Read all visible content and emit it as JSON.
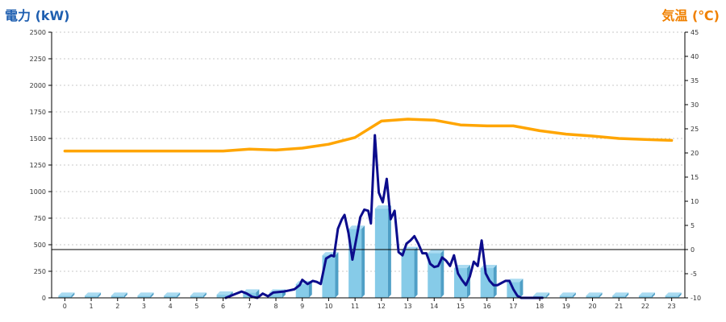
{
  "chart_data": {
    "type": "bar+line",
    "left_axis_title": "電力 (kW)",
    "right_axis_title": "気温 (℃)",
    "colors": {
      "bar_face": "#86cbe8",
      "bar_side": "#4f9fc6",
      "bar_top": "#a9dbf1",
      "power_line": "#0c0c8c",
      "temp_line": "#ffa500",
      "left_title": "#1f5fb0",
      "right_title": "#f08000"
    },
    "left_axis": {
      "ylim": [
        0,
        2500
      ],
      "ticks": [
        0,
        250,
        500,
        750,
        1000,
        1250,
        1500,
        1750,
        2000,
        2250,
        2500
      ]
    },
    "right_axis": {
      "ylim": [
        -10,
        45
      ],
      "ticks": [
        -10,
        -5,
        0,
        5,
        10,
        15,
        20,
        25,
        30,
        35,
        40,
        45
      ]
    },
    "categories": [
      "0",
      "1",
      "2",
      "3",
      "4",
      "5",
      "6",
      "7",
      "8",
      "9",
      "10",
      "11",
      "12",
      "13",
      "14",
      "15",
      "16",
      "17",
      "18",
      "19",
      "20",
      "21",
      "22",
      "23"
    ],
    "series": [
      {
        "kind": "bar",
        "values": [
          20,
          20,
          20,
          20,
          20,
          20,
          30,
          50,
          50,
          130,
          400,
          650,
          840,
          450,
          420,
          280,
          280,
          150,
          20,
          20,
          20,
          20,
          20,
          20
        ]
      },
      {
        "kind": "line",
        "axis": "right",
        "x": [
          0,
          1,
          2,
          3,
          4,
          5,
          6,
          7,
          8,
          9,
          10,
          11,
          12,
          13,
          14,
          15,
          16,
          17,
          18,
          19,
          20,
          21,
          22,
          23
        ],
        "values": [
          20.4,
          20.4,
          20.4,
          20.4,
          20.4,
          20.4,
          20.4,
          20.8,
          20.6,
          21.0,
          21.8,
          23.2,
          26.6,
          27.0,
          26.8,
          25.8,
          25.6,
          25.6,
          24.6,
          23.9,
          23.5,
          23.0,
          22.8,
          22.6
        ]
      },
      {
        "kind": "line",
        "axis": "left",
        "x": [
          6.1,
          6.4,
          6.7,
          6.9,
          7.1,
          7.3,
          7.5,
          7.7,
          7.9,
          8.1,
          8.3,
          8.5,
          8.7,
          8.9,
          9.0,
          9.2,
          9.4,
          9.55,
          9.7,
          9.9,
          10.1,
          10.2,
          10.35,
          10.5,
          10.6,
          10.75,
          10.9,
          11.05,
          11.2,
          11.35,
          11.5,
          11.6,
          11.75,
          11.9,
          12.05,
          12.2,
          12.35,
          12.5,
          12.65,
          12.8,
          12.95,
          13.1,
          13.25,
          13.4,
          13.55,
          13.7,
          13.85,
          14.0,
          14.15,
          14.3,
          14.45,
          14.6,
          14.75,
          14.9,
          15.05,
          15.2,
          15.35,
          15.5,
          15.65,
          15.8,
          15.95,
          16.1,
          16.25,
          16.4,
          16.55,
          16.7,
          16.85,
          17.0,
          17.15,
          17.3,
          17.45,
          17.6,
          17.75,
          17.9,
          18.1
        ],
        "values": [
          0,
          30,
          60,
          40,
          10,
          0,
          40,
          15,
          50,
          55,
          60,
          70,
          80,
          120,
          170,
          130,
          160,
          150,
          130,
          370,
          400,
          390,
          650,
          740,
          780,
          610,
          360,
          560,
          760,
          830,
          820,
          700,
          1530,
          990,
          900,
          1120,
          740,
          820,
          430,
          400,
          510,
          540,
          580,
          510,
          420,
          420,
          320,
          290,
          300,
          380,
          350,
          300,
          400,
          230,
          170,
          120,
          200,
          340,
          300,
          540,
          230,
          160,
          120,
          120,
          140,
          160,
          160,
          80,
          20,
          0,
          0,
          0,
          0,
          0,
          0
        ]
      }
    ],
    "reference_line": {
      "axis": "right",
      "value": 0
    },
    "grid": true
  }
}
